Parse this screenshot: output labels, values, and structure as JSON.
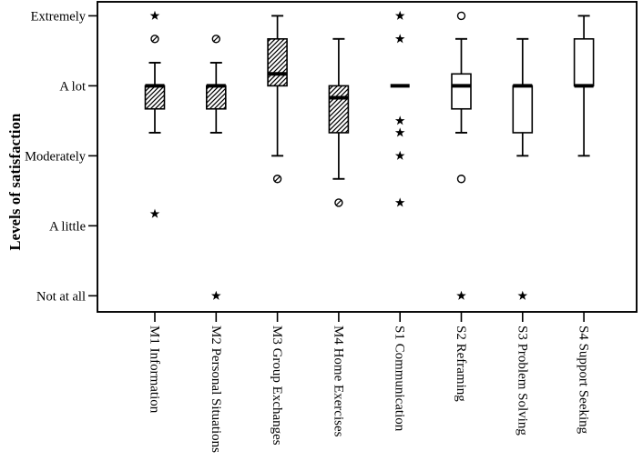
{
  "chart_data": {
    "type": "boxplot",
    "title": "",
    "xlabel": "",
    "ylabel": "Levels of satisfaction",
    "ylim": [
      0.77,
      5.2
    ],
    "grid": false,
    "legend": "none",
    "y_ticks": [
      {
        "value": 5,
        "label": "Extremely"
      },
      {
        "value": 4,
        "label": "A lot"
      },
      {
        "value": 3,
        "label": "Moderately"
      },
      {
        "value": 2,
        "label": "A little"
      },
      {
        "value": 1,
        "label": "Not at all"
      }
    ],
    "categories": [
      "M1 Information",
      "M2 Personal Situations",
      "M3 Group Exchanges",
      "M4 Home Exercises",
      "S1 Communication",
      "S2 Reframing",
      "S3 Problem Solving",
      "S4 Support Seeking"
    ],
    "series": [
      {
        "category": "M1 Information",
        "style": "hatched",
        "whisker_low": 3.33,
        "q1": 3.67,
        "median": 4.0,
        "q3": 4.0,
        "whisker_high": 4.33,
        "outliers": [
          {
            "value": 5.0,
            "marker": "star"
          },
          {
            "value": 4.67,
            "marker": "circle-hatched"
          },
          {
            "value": 2.17,
            "marker": "star"
          }
        ]
      },
      {
        "category": "M2 Personal Situations",
        "style": "hatched",
        "whisker_low": 3.33,
        "q1": 3.67,
        "median": 4.0,
        "q3": 4.0,
        "whisker_high": 4.33,
        "outliers": [
          {
            "value": 4.67,
            "marker": "circle-hatched"
          },
          {
            "value": 1.0,
            "marker": "star"
          }
        ]
      },
      {
        "category": "M3 Group Exchanges",
        "style": "hatched",
        "whisker_low": 3.0,
        "q1": 4.0,
        "median": 4.17,
        "q3": 4.67,
        "whisker_high": 5.0,
        "outliers": [
          {
            "value": 2.67,
            "marker": "circle-hatched"
          }
        ]
      },
      {
        "category": "M4 Home Exercises",
        "style": "hatched",
        "whisker_low": 2.67,
        "q1": 3.33,
        "median": 3.83,
        "q3": 4.0,
        "whisker_high": 4.67,
        "outliers": [
          {
            "value": 2.33,
            "marker": "circle-hatched"
          }
        ]
      },
      {
        "category": "S1 Communication",
        "style": "open",
        "whisker_low": 4.0,
        "q1": 4.0,
        "median": 4.0,
        "q3": 4.0,
        "whisker_high": 4.0,
        "outliers": [
          {
            "value": 5.0,
            "marker": "star"
          },
          {
            "value": 4.67,
            "marker": "star"
          },
          {
            "value": 3.5,
            "marker": "star"
          },
          {
            "value": 3.33,
            "marker": "star"
          },
          {
            "value": 3.0,
            "marker": "star"
          },
          {
            "value": 2.33,
            "marker": "star"
          }
        ]
      },
      {
        "category": "S2 Reframing",
        "style": "open",
        "whisker_low": 3.33,
        "q1": 3.67,
        "median": 4.0,
        "q3": 4.17,
        "whisker_high": 4.67,
        "outliers": [
          {
            "value": 5.0,
            "marker": "circle"
          },
          {
            "value": 2.67,
            "marker": "circle"
          },
          {
            "value": 1.0,
            "marker": "star"
          }
        ]
      },
      {
        "category": "S3 Problem Solving",
        "style": "open",
        "whisker_low": 3.0,
        "q1": 3.33,
        "median": 4.0,
        "q3": 4.0,
        "whisker_high": 4.67,
        "outliers": [
          {
            "value": 1.0,
            "marker": "star"
          }
        ]
      },
      {
        "category": "S4 Support Seeking",
        "style": "open",
        "whisker_low": 3.0,
        "q1": 4.0,
        "median": 4.0,
        "q3": 4.67,
        "whisker_high": 5.0,
        "outliers": []
      }
    ],
    "colors": {
      "line": "#000000",
      "box_fill_open": "#ffffff",
      "background": "#ffffff"
    }
  }
}
